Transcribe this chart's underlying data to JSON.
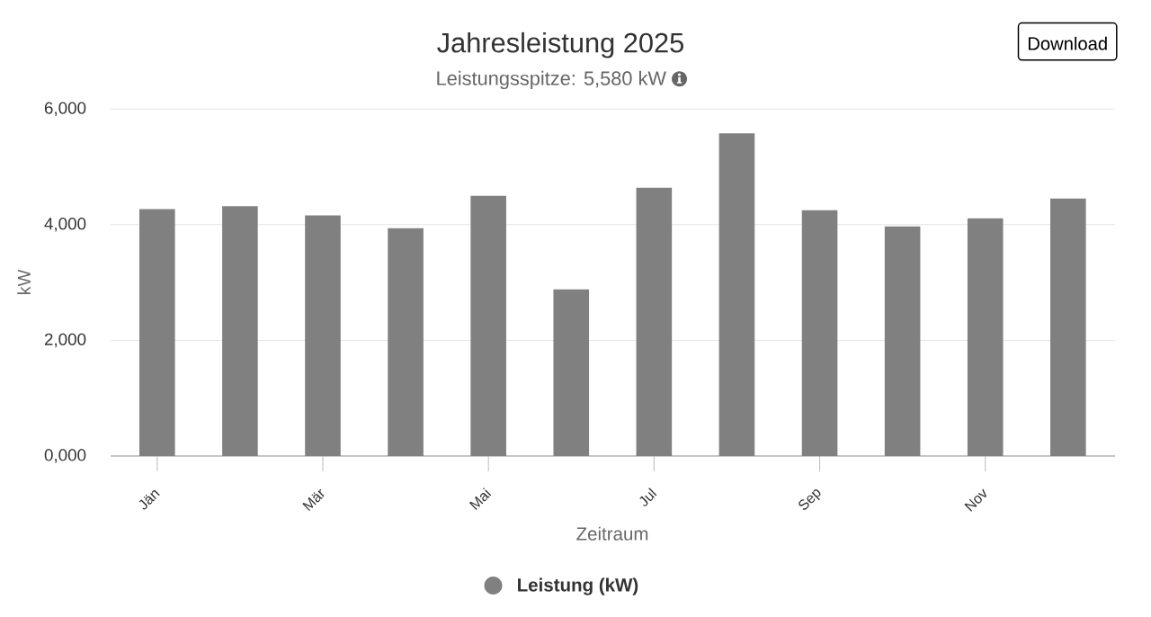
{
  "chart_data": {
    "type": "bar",
    "title": "Jahresleistung 2025",
    "subtitle": "Leistungsspitze: 5,580 kW",
    "xlabel": "Zeitraum",
    "ylabel": "kW",
    "annotations": [
      "Download"
    ],
    "categories": [
      "Jän",
      null,
      "Mär",
      null,
      "Mai",
      null,
      "Jul",
      null,
      "Sep",
      null,
      "Nov",
      null
    ],
    "series": [
      {
        "name": "Leistung (kW)",
        "color": "#808080",
        "values": [
          4270,
          4320,
          4160,
          3940,
          4500,
          2880,
          4640,
          5580,
          4250,
          3970,
          4110,
          4450
        ]
      }
    ],
    "ylim": [
      0,
      6000
    ],
    "yticks": [
      {
        "value": 0,
        "label": "0,000"
      },
      {
        "value": 2000,
        "label": "2,000"
      },
      {
        "value": 4000,
        "label": "4,000"
      },
      {
        "value": 6000,
        "label": "6,000"
      }
    ],
    "grid": "y",
    "legend": "bottom"
  }
}
